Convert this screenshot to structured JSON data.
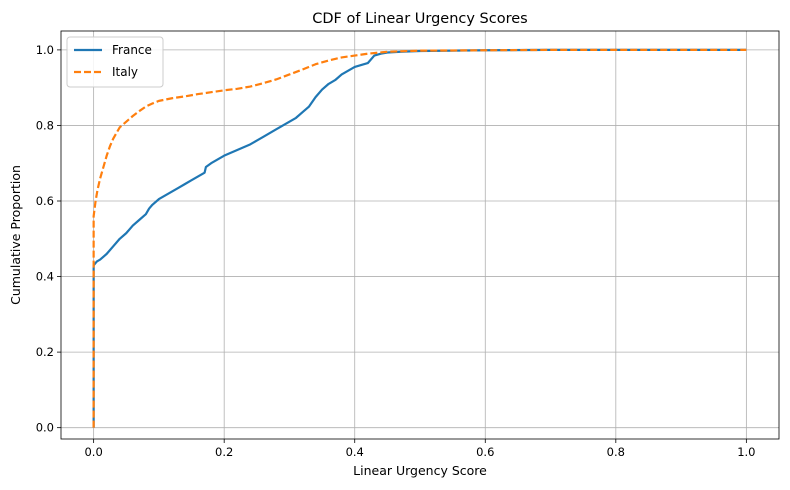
{
  "chart_data": {
    "type": "line",
    "title": "CDF of Linear Urgency Scores",
    "xlabel": "Linear Urgency Score",
    "ylabel": "Cumulative Proportion",
    "xlim": [
      -0.05,
      1.05
    ],
    "ylim": [
      -0.03,
      1.05
    ],
    "xticks": [
      0.0,
      0.2,
      0.4,
      0.6,
      0.8,
      1.0
    ],
    "xtick_labels": [
      "0.0",
      "0.2",
      "0.4",
      "0.6",
      "0.8",
      "1.0"
    ],
    "yticks": [
      0.0,
      0.2,
      0.4,
      0.6,
      0.8,
      1.0
    ],
    "ytick_labels": [
      "0.0",
      "0.2",
      "0.4",
      "0.6",
      "0.8",
      "1.0"
    ],
    "grid": true,
    "legend": "top-left",
    "series": [
      {
        "name": "France",
        "color": "#1f77b4",
        "style": "solid",
        "x": [
          0.0,
          0.0,
          0.005,
          0.01,
          0.02,
          0.03,
          0.04,
          0.05,
          0.06,
          0.07,
          0.08,
          0.085,
          0.09,
          0.1,
          0.12,
          0.13,
          0.14,
          0.15,
          0.16,
          0.17,
          0.172,
          0.18,
          0.19,
          0.2,
          0.22,
          0.24,
          0.25,
          0.26,
          0.28,
          0.29,
          0.3,
          0.31,
          0.32,
          0.33,
          0.34,
          0.35,
          0.36,
          0.37,
          0.38,
          0.39,
          0.4,
          0.42,
          0.43,
          0.44,
          0.45,
          0.47,
          0.5,
          0.55,
          0.6,
          0.7,
          0.8,
          0.9,
          1.0
        ],
        "y": [
          0.0,
          0.43,
          0.44,
          0.445,
          0.46,
          0.48,
          0.5,
          0.515,
          0.535,
          0.55,
          0.565,
          0.58,
          0.59,
          0.605,
          0.625,
          0.635,
          0.645,
          0.655,
          0.665,
          0.675,
          0.69,
          0.7,
          0.71,
          0.72,
          0.735,
          0.75,
          0.76,
          0.77,
          0.79,
          0.8,
          0.81,
          0.82,
          0.835,
          0.85,
          0.875,
          0.895,
          0.91,
          0.92,
          0.935,
          0.945,
          0.955,
          0.965,
          0.985,
          0.99,
          0.993,
          0.995,
          0.997,
          0.998,
          0.999,
          1.0,
          1.0,
          1.0,
          1.0
        ]
      },
      {
        "name": "Italy",
        "color": "#ff7f0e",
        "style": "dashed",
        "x": [
          0.0,
          0.0,
          0.003,
          0.006,
          0.01,
          0.015,
          0.02,
          0.025,
          0.03,
          0.035,
          0.04,
          0.05,
          0.06,
          0.07,
          0.08,
          0.09,
          0.1,
          0.12,
          0.14,
          0.16,
          0.18,
          0.2,
          0.22,
          0.24,
          0.26,
          0.28,
          0.3,
          0.32,
          0.34,
          0.36,
          0.38,
          0.4,
          0.42,
          0.45,
          0.5,
          0.6,
          0.7,
          0.8,
          0.9,
          1.0
        ],
        "y": [
          0.0,
          0.56,
          0.6,
          0.63,
          0.66,
          0.69,
          0.72,
          0.745,
          0.765,
          0.78,
          0.795,
          0.81,
          0.825,
          0.838,
          0.85,
          0.858,
          0.865,
          0.872,
          0.877,
          0.883,
          0.888,
          0.893,
          0.897,
          0.903,
          0.912,
          0.922,
          0.935,
          0.948,
          0.962,
          0.972,
          0.98,
          0.985,
          0.99,
          0.995,
          0.998,
          0.999,
          1.0,
          1.0,
          1.0,
          1.0
        ]
      }
    ]
  }
}
